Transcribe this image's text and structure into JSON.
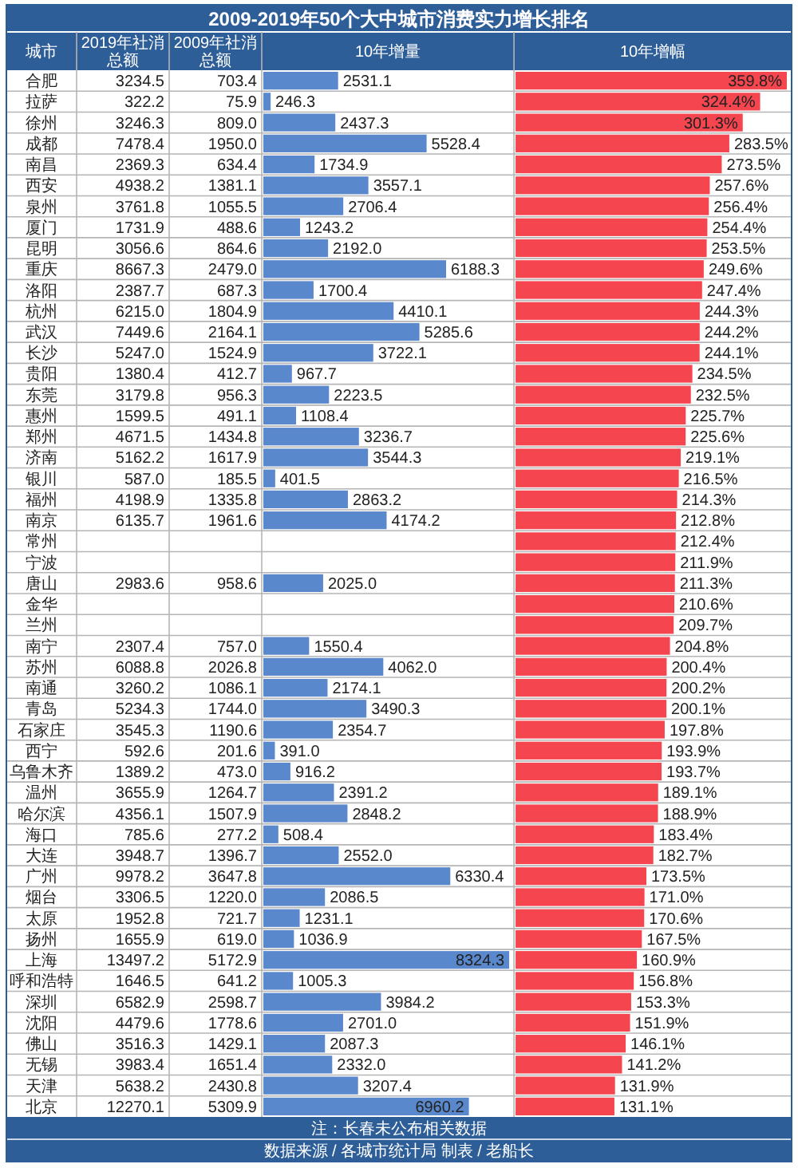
{
  "chart_data": [
    {
      "type": "other",
      "title": "2009-2019年50个大中城市消费实力增长排名",
      "ylabel": "城市",
      "categories": [
        "合肥",
        "拉萨",
        "徐州",
        "成都",
        "南昌",
        "西安",
        "泉州",
        "厦门",
        "昆明",
        "重庆",
        "洛阳",
        "杭州",
        "武汉",
        "长沙",
        "贵阳",
        "东莞",
        "惠州",
        "郑州",
        "济南",
        "银川",
        "福州",
        "南京",
        "常州",
        "宁波",
        "唐山",
        "金华",
        "兰州",
        "南宁",
        "苏州",
        "南通",
        "青岛",
        "石家庄",
        "西宁",
        "乌鲁木齐",
        "温州",
        "哈尔滨",
        "海口",
        "大连",
        "广州",
        "烟台",
        "太原",
        "扬州",
        "上海",
        "呼和浩特",
        "深圳",
        "沈阳",
        "佛山",
        "无锡",
        "天津",
        "北京"
      ],
      "series": [
        {
          "name": "2019年社消总额",
          "values": [
            3234.5,
            322.2,
            3246.3,
            7478.4,
            2369.3,
            4938.2,
            3761.8,
            1731.9,
            3056.6,
            8667.3,
            2387.7,
            6215.0,
            7449.6,
            5247.0,
            1380.4,
            3179.8,
            1599.5,
            4671.5,
            5162.2,
            587.0,
            4198.9,
            6135.7,
            null,
            null,
            2983.6,
            null,
            null,
            2307.4,
            6088.8,
            3260.2,
            5234.3,
            3545.3,
            592.6,
            1389.2,
            3655.9,
            4356.1,
            785.6,
            3948.7,
            9978.2,
            3306.5,
            1952.8,
            1655.9,
            13497.2,
            1646.5,
            6582.9,
            4479.6,
            3516.3,
            3983.4,
            5638.2,
            12270.1
          ],
          "value_labels": [
            "3234.5",
            "322.2",
            "3246.3",
            "7478.4",
            "2369.3",
            "4938.2",
            "3761.8",
            "1731.9",
            "3056.6",
            "8667.3",
            "2387.7",
            "6215.0",
            "7449.6",
            "5247.0",
            "1380.4",
            "3179.8",
            "1599.5",
            "4671.5",
            "5162.2",
            "587.0",
            "4198.9",
            "6135.7",
            null,
            null,
            "2983.6",
            null,
            null,
            "2307.4",
            "6088.8",
            "3260.2",
            "5234.3",
            "3545.3",
            "592.6",
            "1389.2",
            "3655.9",
            "4356.1",
            "785.6",
            "3948.7",
            "9978.2",
            "3306.5",
            "1952.8",
            "1655.9",
            "13497.2",
            "1646.5",
            "6582.9",
            "4479.6",
            "3516.3",
            "3983.4",
            "5638.2",
            "12270.1"
          ]
        },
        {
          "name": "2009年社消总额",
          "values": [
            703.4,
            75.9,
            809.0,
            1950.0,
            634.4,
            1381.1,
            1055.5,
            488.6,
            864.6,
            2479.0,
            687.3,
            1804.9,
            2164.1,
            1524.9,
            412.7,
            956.3,
            491.1,
            1434.8,
            1617.9,
            185.5,
            1335.8,
            1961.6,
            null,
            null,
            958.6,
            null,
            null,
            757.0,
            2026.8,
            1086.1,
            1744.0,
            1190.6,
            201.6,
            473.0,
            1264.7,
            1507.9,
            277.2,
            1396.7,
            3647.8,
            1220.0,
            721.7,
            619.0,
            5172.9,
            641.2,
            2598.7,
            1778.6,
            1429.1,
            1651.4,
            2430.8,
            5309.9
          ],
          "value_labels": [
            "703.4",
            "75.9",
            "809.0",
            "1950.0",
            "634.4",
            "1381.1",
            "1055.5",
            "488.6",
            "864.6",
            "2479.0",
            "687.3",
            "1804.9",
            "2164.1",
            "1524.9",
            "412.7",
            "956.3",
            "491.1",
            "1434.8",
            "1617.9",
            "185.5",
            "1335.8",
            "1961.6",
            null,
            null,
            "958.6",
            null,
            null,
            "757.0",
            "2026.8",
            "1086.1",
            "1744.0",
            "1190.6",
            "201.6",
            "473.0",
            "1264.7",
            "1507.9",
            "277.2",
            "1396.7",
            "3647.8",
            "1220.0",
            "721.7",
            "619.0",
            "5172.9",
            "641.2",
            "2598.7",
            "1778.6",
            "1429.1",
            "1651.4",
            "2430.8",
            "5309.9"
          ]
        }
      ],
      "annotations": [
        "注：长春未公布相关数据",
        "数据来源 / 各城市统计局 制表 / 老船长"
      ]
    },
    {
      "type": "bar",
      "orientation": "horizontal",
      "xlabel": "10年增量",
      "tick_labels": false,
      "categories": [
        "合肥",
        "拉萨",
        "徐州",
        "成都",
        "南昌",
        "西安",
        "泉州",
        "厦门",
        "昆明",
        "重庆",
        "洛阳",
        "杭州",
        "武汉",
        "长沙",
        "贵阳",
        "东莞",
        "惠州",
        "郑州",
        "济南",
        "银川",
        "福州",
        "南京",
        "常州",
        "宁波",
        "唐山",
        "金华",
        "兰州",
        "南宁",
        "苏州",
        "南通",
        "青岛",
        "石家庄",
        "西宁",
        "乌鲁木齐",
        "温州",
        "哈尔滨",
        "海口",
        "大连",
        "广州",
        "烟台",
        "太原",
        "扬州",
        "上海",
        "呼和浩特",
        "深圳",
        "沈阳",
        "佛山",
        "无锡",
        "天津",
        "北京"
      ],
      "series": [
        {
          "color": "#5a88cc",
          "values": [
            2531.1,
            246.3,
            2437.3,
            5528.4,
            1734.9,
            3557.1,
            2706.4,
            1243.2,
            2192.0,
            6188.3,
            1700.4,
            4410.1,
            5285.6,
            3722.1,
            967.7,
            2223.5,
            1108.4,
            3236.7,
            3544.3,
            401.5,
            2863.2,
            4174.2,
            null,
            null,
            2025.0,
            null,
            null,
            1550.4,
            4062.0,
            2174.1,
            3490.3,
            2354.7,
            391.0,
            916.2,
            2391.2,
            2848.2,
            508.4,
            2552.0,
            6330.4,
            2086.5,
            1231.1,
            1036.9,
            8324.3,
            1005.3,
            3984.2,
            2701.0,
            2087.3,
            2332.0,
            3207.4,
            6960.2
          ],
          "value_labels": [
            "2531.1",
            "246.3",
            "2437.3",
            "5528.4",
            "1734.9",
            "3557.1",
            "2706.4",
            "1243.2",
            "2192.0",
            "6188.3",
            "1700.4",
            "4410.1",
            "5285.6",
            "3722.1",
            "967.7",
            "2223.5",
            "1108.4",
            "3236.7",
            "3544.3",
            "401.5",
            "2863.2",
            "4174.2",
            null,
            null,
            "2025.0",
            null,
            null,
            "1550.4",
            "4062.0",
            "2174.1",
            "3490.3",
            "2354.7",
            "391.0",
            "916.2",
            "2391.2",
            "2848.2",
            "508.4",
            "2552.0",
            "6330.4",
            "2086.5",
            "1231.1",
            "1036.9",
            "8324.3",
            "1005.3",
            "3984.2",
            "2701.0",
            "2087.3",
            "2332.0",
            "3207.4",
            "6960.2"
          ]
        }
      ]
    },
    {
      "type": "bar",
      "orientation": "horizontal",
      "xlabel": "10年增幅",
      "tick_labels": false,
      "categories": [
        "合肥",
        "拉萨",
        "徐州",
        "成都",
        "南昌",
        "西安",
        "泉州",
        "厦门",
        "昆明",
        "重庆",
        "洛阳",
        "杭州",
        "武汉",
        "长沙",
        "贵阳",
        "东莞",
        "惠州",
        "郑州",
        "济南",
        "银川",
        "福州",
        "南京",
        "常州",
        "宁波",
        "唐山",
        "金华",
        "兰州",
        "南宁",
        "苏州",
        "南通",
        "青岛",
        "石家庄",
        "西宁",
        "乌鲁木齐",
        "温州",
        "哈尔滨",
        "海口",
        "大连",
        "广州",
        "烟台",
        "太原",
        "扬州",
        "上海",
        "呼和浩特",
        "深圳",
        "沈阳",
        "佛山",
        "无锡",
        "天津",
        "北京"
      ],
      "series": [
        {
          "color": "#f5454f",
          "values": [
            359.8,
            324.4,
            301.3,
            283.5,
            273.5,
            257.6,
            256.4,
            254.4,
            253.5,
            249.6,
            247.4,
            244.3,
            244.2,
            244.1,
            234.5,
            232.5,
            225.7,
            225.6,
            219.1,
            216.5,
            214.3,
            212.8,
            212.4,
            211.9,
            211.3,
            210.6,
            209.7,
            204.8,
            200.4,
            200.2,
            200.1,
            197.8,
            193.9,
            193.7,
            189.1,
            188.9,
            183.4,
            182.7,
            173.5,
            171.0,
            170.6,
            167.5,
            160.9,
            156.8,
            153.3,
            151.9,
            146.1,
            141.2,
            131.9,
            131.1
          ],
          "value_labels": [
            "359.8%",
            "324.4%",
            "301.3%",
            "283.5%",
            "273.5%",
            "257.6%",
            "256.4%",
            "254.4%",
            "253.5%",
            "249.6%",
            "247.4%",
            "244.3%",
            "244.2%",
            "244.1%",
            "234.5%",
            "232.5%",
            "225.7%",
            "225.6%",
            "219.1%",
            "216.5%",
            "214.3%",
            "212.8%",
            "212.4%",
            "211.9%",
            "211.3%",
            "210.6%",
            "209.7%",
            "204.8%",
            "200.4%",
            "200.2%",
            "200.1%",
            "197.8%",
            "193.9%",
            "193.7%",
            "189.1%",
            "188.9%",
            "183.4%",
            "182.7%",
            "173.5%",
            "171.0%",
            "170.6%",
            "167.5%",
            "160.9%",
            "156.8%",
            "153.3%",
            "151.9%",
            "146.1%",
            "141.2%",
            "131.9%",
            "131.1%"
          ]
        }
      ]
    }
  ]
}
